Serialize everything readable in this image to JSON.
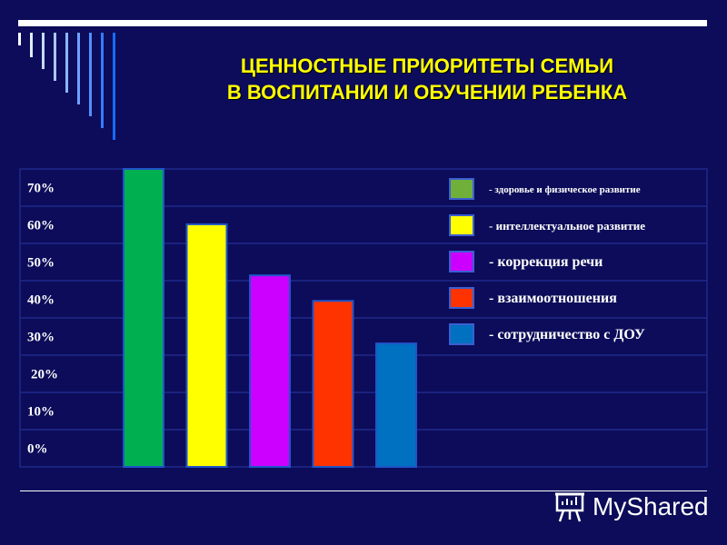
{
  "title": {
    "line1": "ЦЕННОСТНЫЕ ПРИОРИТЕТЫ   СЕМЬИ",
    "line2": "В ВОСПИТАНИИ И ОБУЧЕНИИ РЕБЕНКА"
  },
  "chart_data": {
    "type": "bar",
    "categories": [
      "здоровье и физическое развитие",
      "интеллектуальное развитие",
      "коррекция речи",
      "взаимоотношения",
      "сотрудничество с ДОУ"
    ],
    "values": [
      70,
      57,
      45,
      39,
      29
    ],
    "colors": [
      "#00b050",
      "#ffff00",
      "#cc00ff",
      "#ff3300",
      "#0070c0"
    ],
    "ylim": [
      0,
      70
    ],
    "ytick_labels": [
      "70%",
      "60%",
      "50%",
      "40%",
      "30%",
      "20%",
      "10%",
      "0%"
    ],
    "grid": true,
    "legend_placement": "top-right"
  },
  "legend": [
    {
      "label": "- здоровье и физическое развитие",
      "color": "#70b03a"
    },
    {
      "label": "- интеллектуальное развитие",
      "color": "#ffff00"
    },
    {
      "label": "- коррекция речи",
      "color": "#cc00ff"
    },
    {
      "label": "- взаимоотношения",
      "color": "#ff3300"
    },
    {
      "label": "- сотрудничество с ДОУ",
      "color": "#0070c0"
    }
  ],
  "watermark": {
    "text": "MyShared"
  },
  "colors": {
    "background": "#0c0c5a",
    "title": "#ffff00",
    "grid": "#1e2a8a"
  }
}
